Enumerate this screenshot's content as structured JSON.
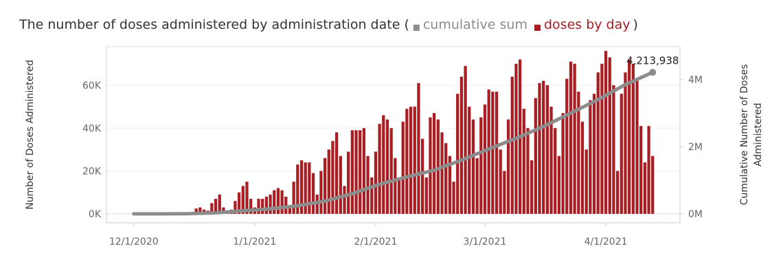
{
  "chart_data": {
    "type": "bar-line",
    "title": "The number of doses administered by administration date (",
    "title_close": ")",
    "y_label": "Number of Doses Administered",
    "y2_label": [
      "Cumulative Number of Doses",
      "Administered"
    ],
    "xlim": [
      "11/24/2020",
      "4/20/2021"
    ],
    "xticks": [
      "12/1/2020",
      "1/1/2021",
      "2/1/2021",
      "3/1/2021",
      "4/1/2021"
    ],
    "ylim": [
      0,
      78000
    ],
    "yticks": [
      {
        "value": 0,
        "label": "0K"
      },
      {
        "value": 20000,
        "label": "20K"
      },
      {
        "value": 40000,
        "label": "40K"
      },
      {
        "value": 60000,
        "label": "60K"
      }
    ],
    "y2lim": [
      0,
      4980000
    ],
    "y2ticks": [
      {
        "value": 0,
        "label": "0M"
      },
      {
        "value": 2000000,
        "label": "2M"
      },
      {
        "value": 4000000,
        "label": "4M"
      }
    ],
    "grid": true,
    "series": [
      {
        "name": "cumulative sum",
        "color": "#8c8c8c",
        "axis": "y2",
        "kind": "line",
        "x": [
          "12/1/2020",
          "12/8/2020",
          "12/15/2020",
          "12/22/2020",
          "12/29/2020",
          "1/5/2021",
          "1/12/2021",
          "1/19/2021",
          "1/26/2021",
          "2/2/2021",
          "2/9/2021",
          "2/16/2021",
          "2/23/2021",
          "3/2/2021",
          "3/9/2021",
          "3/16/2021",
          "3/23/2021",
          "3/30/2021",
          "4/6/2021",
          "4/13/2021"
        ],
        "values": [
          0,
          0,
          5000,
          30000,
          90000,
          150000,
          240000,
          380000,
          600000,
          880000,
          1100000,
          1300000,
          1600000,
          1930000,
          2250000,
          2600000,
          3000000,
          3400000,
          3850000,
          4213938
        ],
        "value_labels": [
          null,
          null,
          null,
          null,
          null,
          null,
          null,
          null,
          null,
          null,
          null,
          null,
          null,
          null,
          null,
          null,
          null,
          null,
          null,
          "4,213,938"
        ]
      },
      {
        "name": "doses by day",
        "color": "#a91e23",
        "kind": "bar",
        "x": [
          "12/1/2020",
          "12/2/2020",
          "12/3/2020",
          "12/4/2020",
          "12/5/2020",
          "12/6/2020",
          "12/7/2020",
          "12/8/2020",
          "12/9/2020",
          "12/10/2020",
          "12/11/2020",
          "12/12/2020",
          "12/13/2020",
          "12/14/2020",
          "12/15/2020",
          "12/16/2020",
          "12/17/2020",
          "12/18/2020",
          "12/19/2020",
          "12/20/2020",
          "12/21/2020",
          "12/22/2020",
          "12/23/2020",
          "12/24/2020",
          "12/25/2020",
          "12/26/2020",
          "12/27/2020",
          "12/28/2020",
          "12/29/2020",
          "12/30/2020",
          "12/31/2020",
          "1/1/2021",
          "1/2/2021",
          "1/3/2021",
          "1/4/2021",
          "1/5/2021",
          "1/6/2021",
          "1/7/2021",
          "1/8/2021",
          "1/9/2021",
          "1/10/2021",
          "1/11/2021",
          "1/12/2021",
          "1/13/2021",
          "1/14/2021",
          "1/15/2021",
          "1/16/2021",
          "1/17/2021",
          "1/18/2021",
          "1/19/2021",
          "1/20/2021",
          "1/21/2021",
          "1/22/2021",
          "1/23/2021",
          "1/24/2021",
          "1/25/2021",
          "1/26/2021",
          "1/27/2021",
          "1/28/2021",
          "1/29/2021",
          "1/30/2021",
          "1/31/2021",
          "2/1/2021",
          "2/2/2021",
          "2/3/2021",
          "2/4/2021",
          "2/5/2021",
          "2/6/2021",
          "2/7/2021",
          "2/8/2021",
          "2/9/2021",
          "2/10/2021",
          "2/11/2021",
          "2/12/2021",
          "2/13/2021",
          "2/14/2021",
          "2/15/2021",
          "2/16/2021",
          "2/17/2021",
          "2/18/2021",
          "2/19/2021",
          "2/20/2021",
          "2/21/2021",
          "2/22/2021",
          "2/23/2021",
          "2/24/2021",
          "2/25/2021",
          "2/26/2021",
          "2/27/2021",
          "2/28/2021",
          "3/1/2021",
          "3/2/2021",
          "3/3/2021",
          "3/4/2021",
          "3/5/2021",
          "3/6/2021",
          "3/7/2021",
          "3/8/2021",
          "3/9/2021",
          "3/10/2021",
          "3/11/2021",
          "3/12/2021",
          "3/13/2021",
          "3/14/2021",
          "3/15/2021",
          "3/16/2021",
          "3/17/2021",
          "3/18/2021",
          "3/19/2021",
          "3/20/2021",
          "3/21/2021",
          "3/22/2021",
          "3/23/2021",
          "3/24/2021",
          "3/25/2021",
          "3/26/2021",
          "3/27/2021",
          "3/28/2021",
          "3/29/2021",
          "3/30/2021",
          "3/31/2021",
          "4/1/2021",
          "4/2/2021",
          "4/3/2021",
          "4/4/2021",
          "4/5/2021",
          "4/6/2021",
          "4/7/2021",
          "4/8/2021",
          "4/9/2021",
          "4/10/2021",
          "4/11/2021",
          "4/12/2021",
          "4/13/2021"
        ],
        "values": [
          0,
          0,
          0,
          0,
          0,
          0,
          0,
          0,
          0,
          0,
          0,
          0,
          0,
          0,
          0,
          0,
          2500,
          3000,
          2000,
          1500,
          5000,
          7000,
          9000,
          3000,
          1000,
          2000,
          6000,
          10000,
          13000,
          15000,
          7000,
          3000,
          7000,
          7000,
          8000,
          9000,
          11000,
          12000,
          11000,
          8000,
          4000,
          15000,
          23000,
          25000,
          24000,
          24000,
          19000,
          9000,
          20000,
          26000,
          30000,
          34000,
          38000,
          27000,
          13000,
          29000,
          39000,
          39000,
          39000,
          40000,
          27000,
          17000,
          29000,
          42000,
          46000,
          44000,
          40000,
          26000,
          16000,
          43000,
          49000,
          50000,
          50000,
          61000,
          35000,
          17000,
          45000,
          47000,
          44000,
          38000,
          33000,
          27000,
          15000,
          56000,
          64000,
          69000,
          50000,
          44000,
          26000,
          45000,
          51000,
          58000,
          57000,
          57000,
          30000,
          20000,
          44000,
          64000,
          70000,
          72000,
          49000,
          40000,
          25000,
          54000,
          61000,
          62000,
          60000,
          50000,
          40000,
          27000,
          47000,
          63000,
          71000,
          70000,
          57000,
          43000,
          30000,
          53000,
          56000,
          66000,
          70000,
          76000,
          73000,
          60000,
          20000,
          56000,
          66000,
          72000,
          70000,
          63000,
          41000,
          24000,
          41000,
          27000
        ]
      }
    ]
  }
}
